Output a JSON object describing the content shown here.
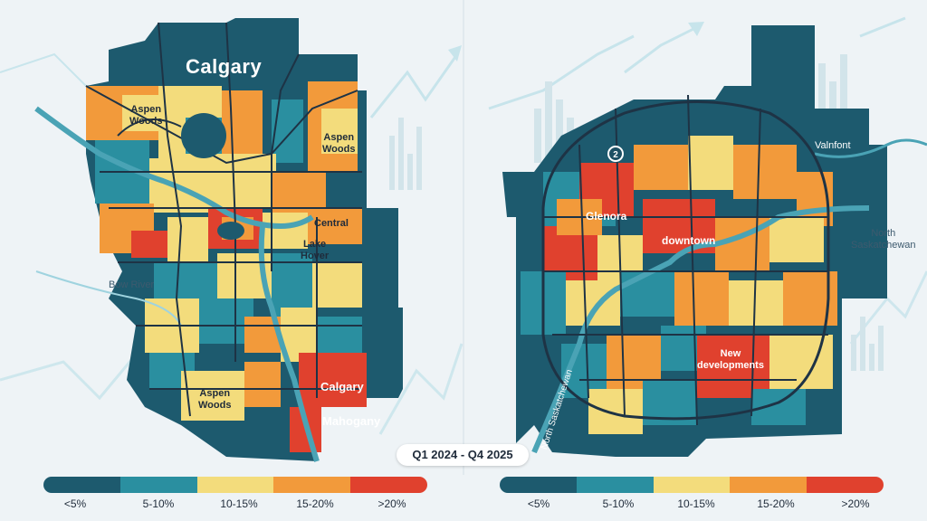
{
  "legend": {
    "bins": [
      {
        "label": "<5%",
        "color": "#1d5a6e"
      },
      {
        "label": "5-10%",
        "color": "#2a8fa0"
      },
      {
        "label": "10-15%",
        "color": "#f3dc7c"
      },
      {
        "label": "15-20%",
        "color": "#f29a3b"
      },
      {
        "label": ">20%",
        "color": "#e0412e"
      }
    ]
  },
  "date_range": "Q1 2024 - Q4 2025",
  "left_map": {
    "city_title": "Calgary",
    "labels": {
      "aspen_woods_nw": "Aspen\nWoods",
      "aspen_woods_ne": "Aspen\nWoods",
      "central": "Central",
      "lake_hover": "Lake\nHover",
      "bow_river": "Bow River",
      "aspen_woods_s": "Aspen\nWoods",
      "calgary_hot": "Calgary",
      "mahogany": "Mahogany"
    }
  },
  "right_map": {
    "labels": {
      "glenora": "Glenora",
      "downtown": "downtown",
      "new_developments": "New\ndevelopments",
      "valnfont": "Valnfont",
      "north_sask": "North\nSaskatchewan",
      "north_sask_river": "North Saskatchewan",
      "route_marker": "2"
    }
  },
  "colors": {
    "background": "#eef3f6",
    "dark": "#1d4f63",
    "road": "#1e3345",
    "river": "#4aa3b5",
    "accent_line": "#9fd3df"
  }
}
